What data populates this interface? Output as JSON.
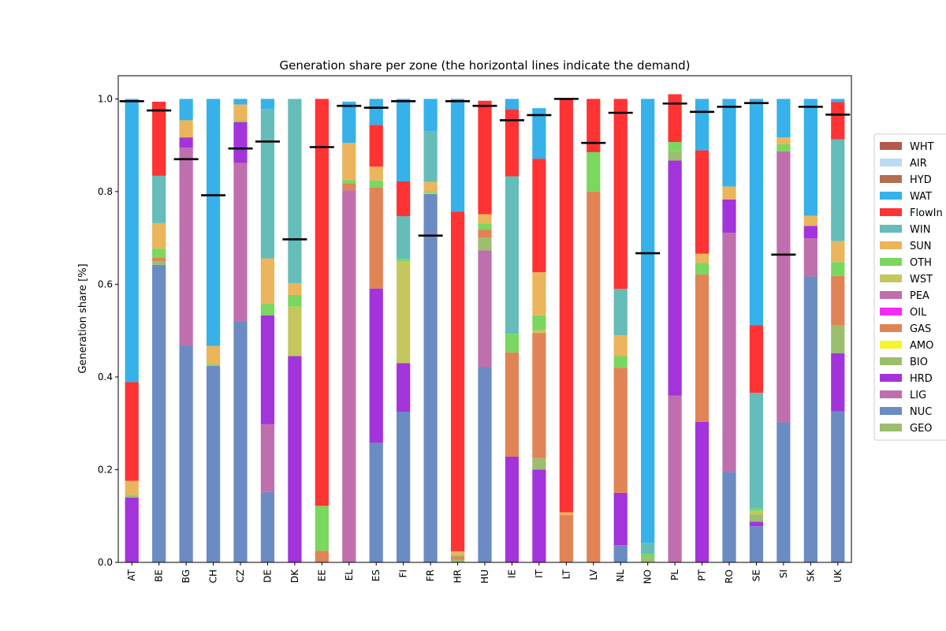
{
  "chart_data": {
    "type": "bar",
    "stacked": true,
    "title": "Generation share per zone (the horizontal lines indicate the demand)",
    "xlabel": "",
    "ylabel": "Generation share [%]",
    "ylim": [
      0,
      1.05
    ],
    "yticks": [
      0.0,
      0.2,
      0.4,
      0.6,
      0.8,
      1.0
    ],
    "ytick_labels": [
      "0.0",
      "0.2",
      "0.4",
      "0.6",
      "0.8",
      "1.0"
    ],
    "grid": false,
    "legend_position": "right",
    "categories": [
      "AT",
      "BE",
      "BG",
      "CH",
      "CZ",
      "DE",
      "DK",
      "EE",
      "EL",
      "ES",
      "FI",
      "FR",
      "HR",
      "HU",
      "IE",
      "IT",
      "LT",
      "LV",
      "NL",
      "NO",
      "PL",
      "PT",
      "RO",
      "SE",
      "SI",
      "SK",
      "UK"
    ],
    "demand": [
      0.995,
      0.975,
      0.87,
      0.792,
      0.893,
      0.908,
      0.697,
      0.896,
      0.985,
      0.981,
      0.995,
      0.705,
      0.995,
      0.985,
      0.954,
      0.965,
      1.0,
      0.905,
      0.97,
      0.667,
      0.99,
      0.972,
      0.983,
      0.991,
      0.664,
      0.983,
      0.966
    ],
    "series": [
      {
        "name": "GEO",
        "color": "#9dbe6f",
        "values": [
          0,
          0,
          0,
          0,
          0,
          0,
          0,
          0,
          0,
          0,
          0,
          0,
          0,
          0,
          0,
          0,
          0,
          0,
          0,
          0,
          0,
          0,
          0,
          0,
          0,
          0,
          0
        ]
      },
      {
        "name": "NUC",
        "color": "#6b8bc3",
        "values": [
          0,
          0.642,
          0.468,
          0.424,
          0.52,
          0.152,
          0,
          0,
          0,
          0.258,
          0.325,
          0.795,
          0,
          0.422,
          0,
          0,
          0,
          0,
          0.037,
          0,
          0,
          0,
          0.195,
          0.078,
          0.302,
          0.617,
          0.326
        ]
      },
      {
        "name": "LIG",
        "color": "#bf6fae",
        "values": [
          0,
          0,
          0.427,
          0,
          0.342,
          0.146,
          0,
          0,
          0.803,
          0,
          0,
          0,
          0,
          0.251,
          0,
          0,
          0,
          0,
          0,
          0,
          0.36,
          0,
          0.516,
          0,
          0.585,
          0.082,
          0
        ]
      },
      {
        "name": "HRD",
        "color": "#a333db",
        "values": [
          0.14,
          0,
          0.022,
          0,
          0.088,
          0.235,
          0.445,
          0,
          0,
          0.333,
          0.105,
          0,
          0,
          0,
          0.228,
          0.2,
          0,
          0,
          0.113,
          0,
          0.507,
          0.303,
          0.072,
          0.01,
          0,
          0.027,
          0.125
        ]
      },
      {
        "name": "BIO",
        "color": "#9dbe6f",
        "values": [
          0.003,
          0.008,
          0,
          0,
          0,
          0,
          0,
          0,
          0,
          0,
          0,
          0,
          0.006,
          0.028,
          0,
          0.025,
          0,
          0,
          0,
          0.01,
          0.02,
          0,
          0,
          0.015,
          0,
          0,
          0.06
        ]
      },
      {
        "name": "AMO",
        "color": "#f5f52a",
        "values": [
          0,
          0,
          0,
          0,
          0,
          0,
          0,
          0,
          0,
          0,
          0,
          0,
          0,
          0,
          0,
          0,
          0,
          0,
          0,
          0,
          0,
          0,
          0,
          0,
          0,
          0,
          0
        ]
      },
      {
        "name": "GAS",
        "color": "#e08455",
        "values": [
          0,
          0.007,
          0,
          0,
          0,
          0,
          0,
          0.025,
          0.015,
          0.218,
          0,
          0,
          0.007,
          0.017,
          0.225,
          0.27,
          0.102,
          0.8,
          0.27,
          0,
          0,
          0.318,
          0,
          0,
          0,
          0,
          0.107
        ]
      },
      {
        "name": "OIL",
        "color": "#f52af5",
        "values": [
          0,
          0,
          0,
          0,
          0,
          0,
          0,
          0,
          0,
          0,
          0,
          0,
          0,
          0,
          0,
          0,
          0,
          0,
          0,
          0,
          0,
          0,
          0,
          0,
          0,
          0,
          0
        ]
      },
      {
        "name": "PEA",
        "color": "#bf6fae",
        "values": [
          0,
          0,
          0,
          0,
          0,
          0,
          0,
          0,
          0,
          0,
          0,
          0,
          0,
          0,
          0,
          0,
          0,
          0,
          0,
          0,
          0,
          0,
          0,
          0,
          0,
          0,
          0
        ]
      },
      {
        "name": "WST",
        "color": "#c4c75d",
        "values": [
          0,
          0,
          0,
          0,
          0,
          0,
          0.107,
          0,
          0,
          0,
          0.22,
          0.003,
          0,
          0,
          0,
          0.007,
          0,
          0,
          0,
          0,
          0,
          0,
          0,
          0.008,
          0,
          0,
          0
        ]
      },
      {
        "name": "OTH",
        "color": "#7ad75f",
        "values": [
          0.003,
          0.02,
          0,
          0.003,
          0.003,
          0.025,
          0.025,
          0.097,
          0.007,
          0.015,
          0.005,
          0.003,
          0.003,
          0.013,
          0.04,
          0.031,
          0,
          0.085,
          0.025,
          0.008,
          0.02,
          0.025,
          0,
          0.005,
          0.015,
          0,
          0.03
        ]
      },
      {
        "name": "SUN",
        "color": "#ebb55b",
        "values": [
          0.03,
          0.055,
          0.037,
          0.04,
          0.035,
          0.098,
          0.025,
          0,
          0.08,
          0.03,
          0,
          0.02,
          0.008,
          0.02,
          0,
          0.093,
          0.006,
          0,
          0.045,
          0,
          0,
          0.02,
          0.028,
          0,
          0.015,
          0.022,
          0.045
        ]
      },
      {
        "name": "WIN",
        "color": "#65bdb9",
        "values": [
          0,
          0.102,
          0,
          0,
          0,
          0.322,
          0.398,
          0,
          0,
          0,
          0.092,
          0.11,
          0,
          0,
          0.34,
          0,
          0,
          0,
          0.1,
          0.024,
          0,
          0,
          0,
          0.25,
          0,
          0,
          0.22
        ]
      },
      {
        "name": "FlowIn",
        "color": "#ff3333",
        "values": [
          0.213,
          0.16,
          0,
          0,
          0,
          0,
          0,
          0.878,
          0,
          0.09,
          0.075,
          0,
          0.733,
          0.245,
          0.145,
          0.245,
          0.892,
          0.115,
          0.41,
          0,
          0.103,
          0.223,
          0,
          0.146,
          0,
          0,
          0.08
        ]
      },
      {
        "name": "WAT",
        "color": "#36b1ea",
        "values": [
          0.611,
          0,
          0.046,
          0.533,
          0.012,
          0.022,
          0,
          0,
          0.089,
          0.056,
          0.178,
          0.069,
          0.243,
          0,
          0.022,
          0.109,
          0,
          0,
          0,
          0.958,
          0,
          0.111,
          0.189,
          0.488,
          0.083,
          0.252,
          0.007
        ]
      },
      {
        "name": "HYD",
        "color": "#b07050",
        "values": [
          0,
          0,
          0,
          0,
          0,
          0,
          0,
          0,
          0,
          0,
          0,
          0,
          0,
          0,
          0,
          0,
          0,
          0,
          0,
          0,
          0,
          0,
          0,
          0,
          0,
          0,
          0
        ]
      },
      {
        "name": "AIR",
        "color": "#bcdaf2",
        "values": [
          0,
          0,
          0,
          0,
          0,
          0,
          0,
          0,
          0,
          0,
          0,
          0,
          0,
          0,
          0,
          0,
          0,
          0,
          0,
          0,
          0,
          0,
          0,
          0,
          0,
          0,
          0
        ]
      },
      {
        "name": "WHT",
        "color": "#b5584d",
        "values": [
          0,
          0,
          0,
          0,
          0,
          0,
          0,
          0,
          0,
          0,
          0,
          0,
          0,
          0,
          0,
          0,
          0,
          0,
          0,
          0,
          0,
          0,
          0,
          0,
          0,
          0,
          0
        ]
      }
    ],
    "legend_order": [
      "WHT",
      "AIR",
      "HYD",
      "WAT",
      "FlowIn",
      "WIN",
      "SUN",
      "OTH",
      "WST",
      "PEA",
      "OIL",
      "GAS",
      "AMO",
      "BIO",
      "HRD",
      "LIG",
      "NUC",
      "GEO"
    ]
  }
}
